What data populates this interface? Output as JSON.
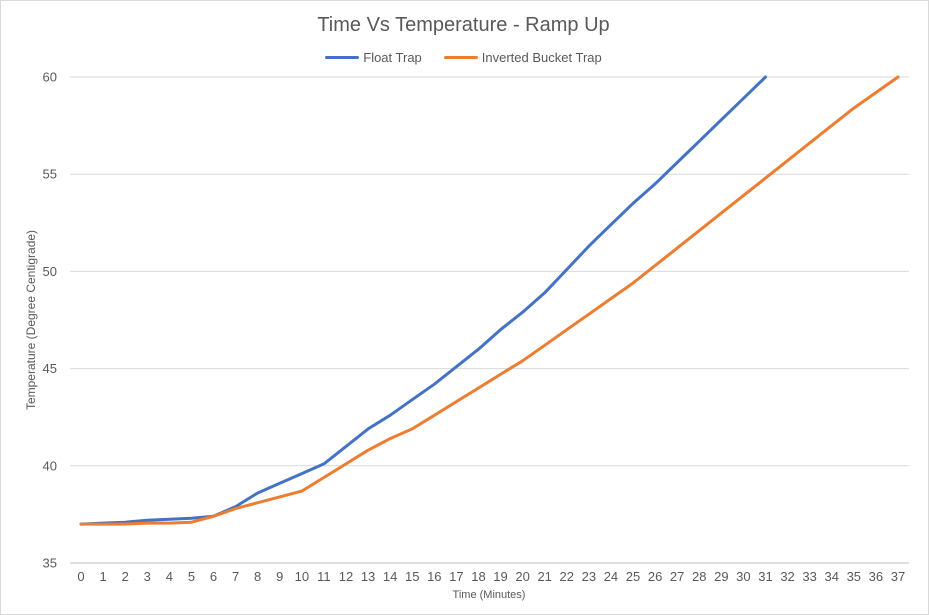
{
  "chart_data": {
    "type": "line",
    "title": "Time Vs Temperature - Ramp Up",
    "xlabel": "Time (Minutes)",
    "ylabel": "Temperature (Degree Centigrade)",
    "ylim": [
      35,
      60
    ],
    "yticks": [
      35,
      40,
      45,
      50,
      55,
      60
    ],
    "categories": [
      "0",
      "1",
      "2",
      "3",
      "4",
      "5",
      "6",
      "7",
      "8",
      "9",
      "10",
      "11",
      "12",
      "13",
      "14",
      "15",
      "16",
      "17",
      "18",
      "19",
      "20",
      "21",
      "22",
      "23",
      "24",
      "25",
      "26",
      "27",
      "28",
      "29",
      "30",
      "31",
      "32",
      "33",
      "34",
      "35",
      "36",
      "37"
    ],
    "grid": true,
    "legend_position": "top",
    "series": [
      {
        "name": "Float Trap",
        "color": "#4472c4",
        "x": [
          0,
          1,
          2,
          3,
          4,
          5,
          6,
          7,
          8,
          9,
          10,
          11,
          12,
          13,
          14,
          15,
          16,
          17,
          18,
          19,
          20,
          21,
          22,
          23,
          24,
          25,
          26,
          27,
          28,
          29,
          30,
          31
        ],
        "values": [
          37.0,
          37.05,
          37.1,
          37.2,
          37.25,
          37.3,
          37.4,
          37.9,
          38.6,
          39.1,
          39.6,
          40.1,
          41.0,
          41.9,
          42.6,
          43.4,
          44.2,
          45.1,
          46.0,
          47.0,
          47.9,
          48.9,
          50.1,
          51.3,
          52.4,
          53.5,
          54.5,
          55.6,
          56.7,
          57.8,
          58.9,
          60.0
        ]
      },
      {
        "name": "Inverted Bucket Trap",
        "color": "#ed7d31",
        "x": [
          0,
          1,
          2,
          3,
          4,
          5,
          6,
          7,
          8,
          9,
          10,
          11,
          12,
          13,
          14,
          15,
          16,
          17,
          18,
          19,
          20,
          21,
          22,
          23,
          24,
          25,
          26,
          27,
          28,
          29,
          30,
          31,
          32,
          33,
          34,
          35,
          36,
          37
        ],
        "values": [
          37.0,
          37.0,
          37.0,
          37.05,
          37.05,
          37.1,
          37.4,
          37.8,
          38.1,
          38.4,
          38.7,
          39.4,
          40.1,
          40.8,
          41.4,
          41.9,
          42.6,
          43.3,
          44.0,
          44.7,
          45.4,
          46.2,
          47.0,
          47.8,
          48.6,
          49.4,
          50.3,
          51.2,
          52.1,
          53.0,
          53.9,
          54.8,
          55.7,
          56.6,
          57.5,
          58.4,
          59.2,
          60.0
        ]
      }
    ]
  }
}
